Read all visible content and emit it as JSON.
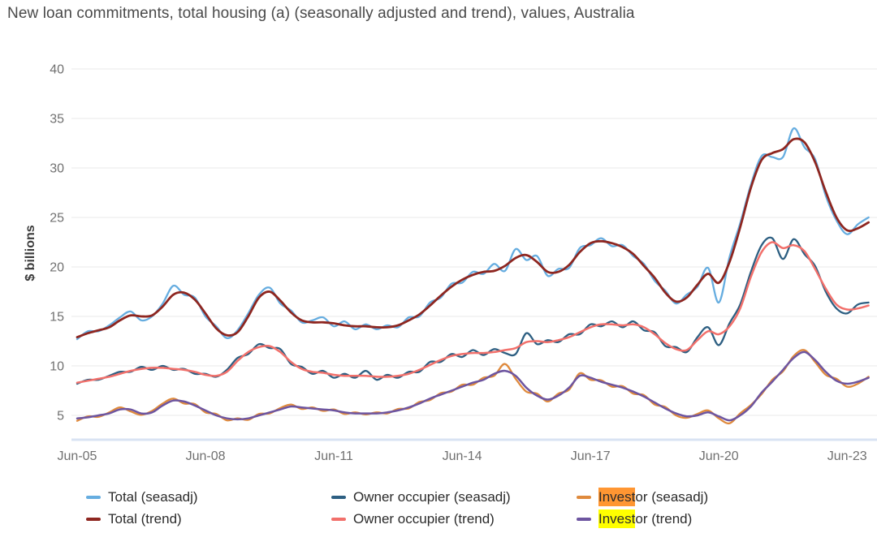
{
  "chart_data": {
    "type": "line",
    "title": "New loan commitments, total housing (a) (seasonally adjusted and trend), values, Australia",
    "xlabel": "",
    "ylabel": "$ billions",
    "ylim": [
      2.5,
      40
    ],
    "yticks": [
      40,
      35,
      30,
      25,
      20,
      15,
      10,
      5
    ],
    "xticks": [
      {
        "label": "Jun-05",
        "month": 0
      },
      {
        "label": "Jun-08",
        "month": 36
      },
      {
        "label": "Jun-11",
        "month": 72
      },
      {
        "label": "Jun-14",
        "month": 108
      },
      {
        "label": "Jun-17",
        "month": 144
      },
      {
        "label": "Jun-20",
        "month": 180
      },
      {
        "label": "Jun-23",
        "month": 216
      }
    ],
    "x_unit": "months since Jun-2005 (monthly series, sampled quarterly)",
    "grid": "horizontal",
    "legend_position": "bottom",
    "x_months": [
      0,
      3,
      6,
      9,
      12,
      15,
      18,
      21,
      24,
      27,
      30,
      33,
      36,
      39,
      42,
      45,
      48,
      51,
      54,
      57,
      60,
      63,
      66,
      69,
      72,
      75,
      78,
      81,
      84,
      87,
      90,
      93,
      96,
      99,
      102,
      105,
      108,
      111,
      114,
      117,
      120,
      123,
      126,
      129,
      132,
      135,
      138,
      141,
      144,
      147,
      150,
      153,
      156,
      159,
      162,
      165,
      168,
      171,
      174,
      177,
      180,
      183,
      186,
      189,
      192,
      195,
      198,
      201,
      204,
      207,
      210,
      213,
      216,
      219,
      222
    ],
    "series": [
      {
        "id": "total-seasadj",
        "name": "Total (seasadj)",
        "color": "#66ade0",
        "width": 2.3,
        "values": [
          12.7,
          13.5,
          13.5,
          14.1,
          14.9,
          15.5,
          14.6,
          15.0,
          16.3,
          18.1,
          17.2,
          16.9,
          15.0,
          14.0,
          12.8,
          13.6,
          15.3,
          17.2,
          17.9,
          16.3,
          15.6,
          14.4,
          14.6,
          14.9,
          14.0,
          14.5,
          13.7,
          14.2,
          13.7,
          14.1,
          13.9,
          14.9,
          15.0,
          16.4,
          16.9,
          18.3,
          18.4,
          19.5,
          19.3,
          20.3,
          19.6,
          21.8,
          20.7,
          21.1,
          19.1,
          19.8,
          19.9,
          21.9,
          22.2,
          22.9,
          22.1,
          22.2,
          21.1,
          20.3,
          18.6,
          17.6,
          16.3,
          17.2,
          18.0,
          19.9,
          16.4,
          21.0,
          24.4,
          28.3,
          31.2,
          31.1,
          31.1,
          34.0,
          32.1,
          30.9,
          27.2,
          24.7,
          23.3,
          24.3,
          25.0
        ]
      },
      {
        "id": "owner-occupier-seasadj",
        "name": "Owner occupier (seasadj)",
        "color": "#2d5f82",
        "width": 2.3,
        "values": [
          8.2,
          8.6,
          8.6,
          9.0,
          9.4,
          9.4,
          9.9,
          9.6,
          10.0,
          9.6,
          9.7,
          9.2,
          9.2,
          8.9,
          9.6,
          10.8,
          11.2,
          12.2,
          11.8,
          11.7,
          10.2,
          9.9,
          9.2,
          9.5,
          8.8,
          9.2,
          8.8,
          9.5,
          8.6,
          9.1,
          8.8,
          9.4,
          9.4,
          10.4,
          10.4,
          11.2,
          10.9,
          11.6,
          11.1,
          11.7,
          11.3,
          11.2,
          13.3,
          12.2,
          12.6,
          12.4,
          13.2,
          13.2,
          14.2,
          14.0,
          14.5,
          13.9,
          14.5,
          13.6,
          13.4,
          12.0,
          11.9,
          11.4,
          12.9,
          13.9,
          12.1,
          14.3,
          16.2,
          19.5,
          22.2,
          22.9,
          20.8,
          22.8,
          21.3,
          20.1,
          17.5,
          15.8,
          15.3,
          16.2,
          16.4
        ]
      },
      {
        "id": "investor-seasadj",
        "name": "Investor (seasadj)",
        "color": "#df8a3d",
        "width": 2.3,
        "values": [
          4.45,
          4.9,
          4.85,
          5.3,
          5.8,
          5.4,
          5.05,
          5.45,
          6.2,
          6.7,
          6.2,
          6.15,
          5.3,
          5.15,
          4.5,
          4.7,
          4.55,
          5.15,
          5.2,
          5.75,
          6.1,
          5.65,
          5.8,
          5.45,
          5.6,
          5.15,
          5.3,
          5.1,
          5.3,
          5.2,
          5.65,
          5.7,
          6.35,
          6.55,
          7.25,
          7.4,
          8.1,
          8.1,
          8.8,
          9.0,
          10.2,
          8.7,
          7.4,
          7.2,
          6.4,
          7.2,
          7.6,
          9.25,
          8.6,
          8.55,
          7.9,
          7.95,
          7.2,
          7.05,
          6.1,
          5.85,
          5.0,
          4.75,
          5.15,
          5.5,
          4.7,
          4.2,
          5.2,
          6.05,
          7.15,
          8.6,
          9.45,
          11.0,
          11.6,
          10.4,
          9.1,
          8.7,
          7.9,
          8.2,
          8.9
        ]
      },
      {
        "id": "total-trend",
        "name": "Total (trend)",
        "color": "#8e2620",
        "width": 2.8,
        "values": [
          12.9,
          13.3,
          13.6,
          13.9,
          14.6,
          15.1,
          15.0,
          15.1,
          16.0,
          17.2,
          17.4,
          16.7,
          15.3,
          13.8,
          13.1,
          13.4,
          15.0,
          16.9,
          17.5,
          16.6,
          15.4,
          14.6,
          14.4,
          14.4,
          14.3,
          14.1,
          14.0,
          14.0,
          13.9,
          13.9,
          14.1,
          14.6,
          15.2,
          16.1,
          17.1,
          18.0,
          18.7,
          19.2,
          19.5,
          19.6,
          20.1,
          20.9,
          21.2,
          20.5,
          19.5,
          19.5,
          20.2,
          21.5,
          22.4,
          22.6,
          22.4,
          22.0,
          21.3,
          20.1,
          18.9,
          17.4,
          16.5,
          16.9,
          18.2,
          19.3,
          18.4,
          20.5,
          24.0,
          28.0,
          30.8,
          31.5,
          31.9,
          32.9,
          32.6,
          30.6,
          27.6,
          25.0,
          23.7,
          23.9,
          24.5
        ]
      },
      {
        "id": "owner-occupier-trend",
        "name": "Owner occupier (trend)",
        "color": "#f2706b",
        "width": 2.5,
        "values": [
          8.3,
          8.5,
          8.7,
          8.9,
          9.2,
          9.5,
          9.7,
          9.8,
          9.8,
          9.7,
          9.6,
          9.4,
          9.1,
          9.0,
          9.4,
          10.5,
          11.4,
          11.9,
          12.0,
          11.4,
          10.4,
          9.7,
          9.4,
          9.3,
          9.1,
          9.0,
          9.0,
          9.0,
          8.9,
          8.9,
          9.0,
          9.2,
          9.6,
          10.1,
          10.6,
          11.0,
          11.2,
          11.3,
          11.3,
          11.4,
          11.6,
          11.8,
          12.4,
          12.5,
          12.4,
          12.6,
          12.9,
          13.4,
          13.9,
          14.2,
          14.2,
          14.1,
          14.2,
          13.9,
          13.2,
          12.3,
          11.7,
          11.6,
          12.6,
          13.5,
          13.2,
          14.0,
          15.8,
          19.0,
          21.5,
          22.5,
          21.9,
          22.2,
          21.6,
          19.8,
          17.8,
          16.2,
          15.7,
          15.8,
          16.1
        ]
      },
      {
        "id": "investor-trend",
        "name": "Investor (trend)",
        "color": "#6d55a0",
        "width": 2.5,
        "values": [
          4.7,
          4.8,
          5.0,
          5.2,
          5.6,
          5.6,
          5.2,
          5.3,
          6.0,
          6.5,
          6.4,
          6.0,
          5.5,
          5.0,
          4.7,
          4.6,
          4.7,
          5.0,
          5.3,
          5.6,
          5.9,
          5.8,
          5.7,
          5.6,
          5.5,
          5.3,
          5.2,
          5.2,
          5.2,
          5.3,
          5.5,
          5.8,
          6.2,
          6.7,
          7.1,
          7.5,
          7.9,
          8.3,
          8.6,
          9.2,
          9.5,
          9.0,
          7.8,
          7.0,
          6.6,
          7.0,
          7.8,
          9.0,
          8.8,
          8.4,
          8.1,
          7.8,
          7.4,
          6.9,
          6.3,
          5.7,
          5.2,
          4.9,
          5.0,
          5.3,
          4.9,
          4.5,
          5.0,
          5.9,
          7.3,
          8.4,
          9.6,
          10.8,
          11.4,
          10.6,
          9.4,
          8.5,
          8.2,
          8.4,
          8.8
        ]
      }
    ]
  },
  "legend": {
    "items": [
      {
        "id": "total-seasadj",
        "color": "#66ade0",
        "hl": "",
        "rest": "Total (seasadj)",
        "hl_bg": ""
      },
      {
        "id": "total-trend",
        "color": "#8e2620",
        "hl": "",
        "rest": "Total (trend)",
        "hl_bg": ""
      },
      {
        "id": "owner-occupier-seasadj",
        "color": "#2d5f82",
        "hl": "",
        "rest": "Owner occupier (seasadj)",
        "hl_bg": ""
      },
      {
        "id": "owner-occupier-trend",
        "color": "#f2706b",
        "hl": "",
        "rest": "Owner occupier (trend)",
        "hl_bg": ""
      },
      {
        "id": "investor-seasadj",
        "color": "#df8a3d",
        "hl": "Invest",
        "rest": "or (seasadj)",
        "hl_bg": "#ff9632"
      },
      {
        "id": "investor-trend",
        "color": "#6d55a0",
        "hl": "Invest",
        "rest": "or (trend)",
        "hl_bg": "#ffff00"
      }
    ]
  }
}
